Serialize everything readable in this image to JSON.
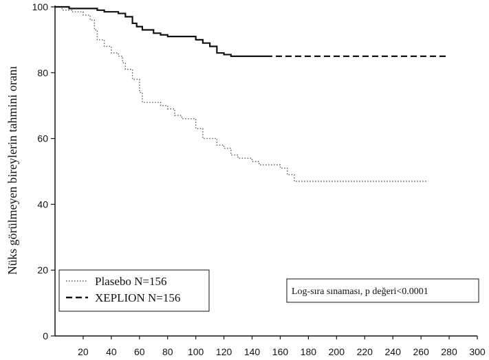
{
  "chart_data": {
    "type": "line",
    "title": "",
    "ylabel": "Nüks görülmeyen bireylerin tahmini oranı",
    "xlabel": "",
    "xlim": [
      0,
      300
    ],
    "ylim": [
      0,
      100
    ],
    "xticks": [
      20,
      40,
      60,
      80,
      100,
      120,
      140,
      160,
      180,
      200,
      220,
      240,
      260,
      280,
      300
    ],
    "yticks": [
      0,
      20,
      40,
      60,
      80,
      100
    ],
    "grid": false,
    "legend_position": "bottom-left",
    "annotation": "Log-sıra sınaması, p değeri<0.0001",
    "series": [
      {
        "name": "Plasebo N=156",
        "style": "dotted",
        "color": "#555555",
        "points": [
          [
            0,
            100
          ],
          [
            5,
            99
          ],
          [
            12,
            98.5
          ],
          [
            20,
            97.5
          ],
          [
            25,
            96
          ],
          [
            28,
            93
          ],
          [
            30,
            90
          ],
          [
            35,
            88
          ],
          [
            40,
            86
          ],
          [
            45,
            85
          ],
          [
            48,
            83
          ],
          [
            50,
            81
          ],
          [
            55,
            78
          ],
          [
            60,
            74
          ],
          [
            62,
            71
          ],
          [
            75,
            70
          ],
          [
            80,
            69
          ],
          [
            85,
            67
          ],
          [
            90,
            66
          ],
          [
            100,
            63
          ],
          [
            105,
            60
          ],
          [
            115,
            58
          ],
          [
            120,
            57
          ],
          [
            125,
            55
          ],
          [
            130,
            54
          ],
          [
            140,
            53
          ],
          [
            145,
            52
          ],
          [
            160,
            51
          ],
          [
            165,
            49
          ],
          [
            170,
            47
          ],
          [
            180,
            47
          ],
          [
            200,
            47
          ],
          [
            230,
            47
          ],
          [
            260,
            47
          ],
          [
            265,
            47
          ]
        ]
      },
      {
        "name": "XEPLION N=156",
        "style": "dashed",
        "color": "#111111",
        "points": [
          [
            0,
            100
          ],
          [
            10,
            99.5
          ],
          [
            30,
            99
          ],
          [
            35,
            98.5
          ],
          [
            45,
            98
          ],
          [
            50,
            97
          ],
          [
            55,
            95
          ],
          [
            58,
            94
          ],
          [
            62,
            93
          ],
          [
            70,
            92
          ],
          [
            75,
            91.5
          ],
          [
            80,
            91
          ],
          [
            100,
            90
          ],
          [
            105,
            89
          ],
          [
            110,
            88
          ],
          [
            115,
            86
          ],
          [
            120,
            85.5
          ],
          [
            125,
            85
          ],
          [
            150,
            85
          ],
          [
            200,
            85
          ],
          [
            250,
            85
          ],
          [
            278,
            85
          ]
        ]
      }
    ]
  }
}
